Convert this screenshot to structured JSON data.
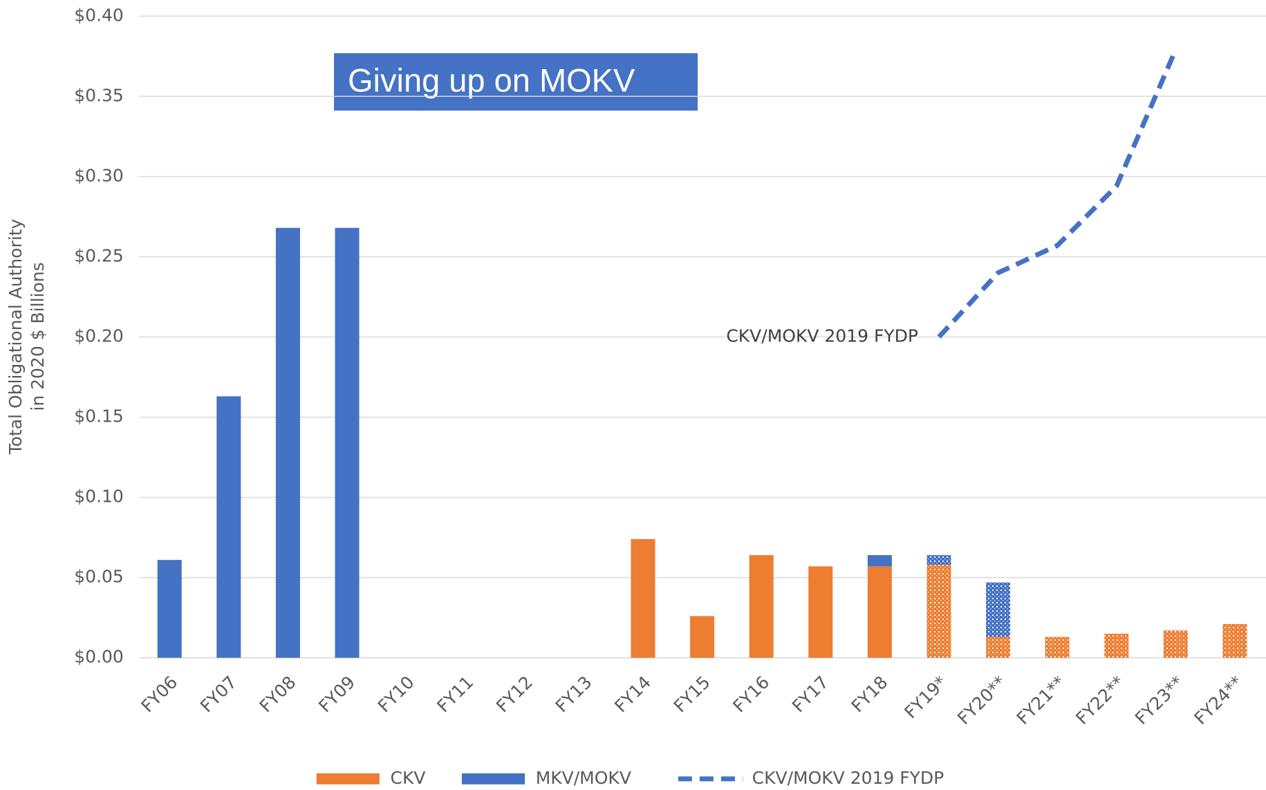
{
  "chart_data": {
    "type": "bar",
    "stacked": true,
    "title": "Giving up on MOKV",
    "y_label": [
      "Total Obligational Authority",
      "in 2020 $ Billions"
    ],
    "categories": [
      "FY06",
      "FY07",
      "FY08",
      "FY09",
      "FY10",
      "FY11",
      "FY12",
      "FY13",
      "FY14",
      "FY15",
      "FY16",
      "FY17",
      "FY18",
      "FY19*",
      "FY20**",
      "FY21**",
      "FY22**",
      "FY23**",
      "FY24**"
    ],
    "hatched": [
      false,
      false,
      false,
      false,
      false,
      false,
      false,
      false,
      false,
      false,
      false,
      false,
      false,
      true,
      true,
      true,
      true,
      true,
      true
    ],
    "series": [
      {
        "name": "CKV",
        "type": "bar",
        "color": "#ed7d31",
        "values": [
          null,
          null,
          null,
          null,
          null,
          null,
          null,
          null,
          0.074,
          0.026,
          0.064,
          0.057,
          0.057,
          0.058,
          0.013,
          0.013,
          0.015,
          0.017,
          0.021
        ]
      },
      {
        "name": "MKV/MOKV",
        "type": "bar",
        "color": "#4472c4",
        "values": [
          0.061,
          0.163,
          0.268,
          0.268,
          null,
          null,
          null,
          null,
          null,
          null,
          null,
          null,
          0.007,
          0.006,
          0.034,
          null,
          null,
          null,
          null
        ]
      },
      {
        "name": "CKV/MOKV 2019 FYDP",
        "type": "line",
        "dashed": true,
        "color": "#4472c4",
        "values": [
          null,
          null,
          null,
          null,
          null,
          null,
          null,
          null,
          null,
          null,
          null,
          null,
          null,
          0.2,
          0.24,
          0.257,
          0.294,
          0.379,
          null
        ]
      }
    ],
    "annotation": "CKV/MOKV 2019 FYDP",
    "ylim": [
      0,
      0.4
    ],
    "yticks": [
      {
        "value": 0,
        "label": "$0.00"
      },
      {
        "value": 0.05,
        "label": "$0.05"
      },
      {
        "value": 0.1,
        "label": "$0.10"
      },
      {
        "value": 0.15,
        "label": "$0.15"
      },
      {
        "value": 0.2,
        "label": "$0.20"
      },
      {
        "value": 0.25,
        "label": "$0.25"
      },
      {
        "value": 0.3,
        "label": "$0.30"
      },
      {
        "value": 0.35,
        "label": "$0.35"
      },
      {
        "value": 0.4,
        "label": "$0.40"
      }
    ],
    "grid": true,
    "legend": "bottom"
  }
}
